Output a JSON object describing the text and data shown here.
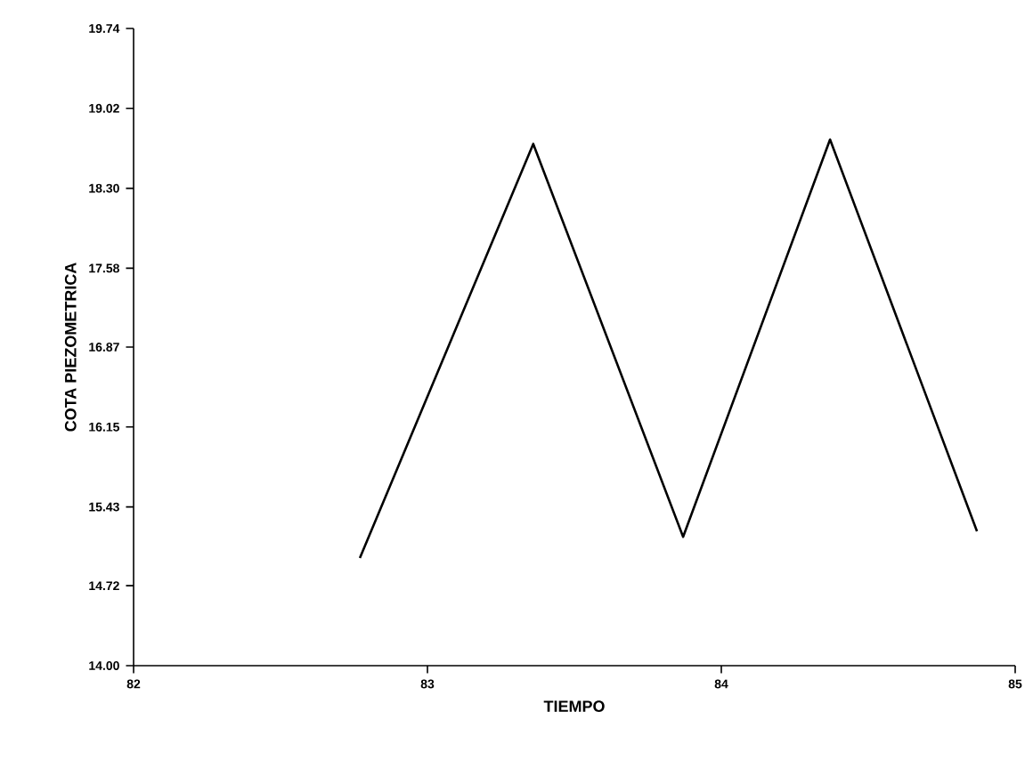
{
  "chart_data": {
    "type": "line",
    "xlabel": "TIEMPO",
    "ylabel": "COTA PIEZOMETRICA",
    "x": [
      82.77,
      83.36,
      83.87,
      84.37,
      84.87
    ],
    "series": [
      {
        "color": "#000000",
        "values": [
          14.97,
          18.7,
          15.16,
          18.74,
          15.21
        ]
      }
    ],
    "xlim": [
      82,
      85
    ],
    "xticks": [
      82,
      83,
      84,
      85
    ],
    "ylim": [
      14.0,
      19.74
    ],
    "yticks": [
      {
        "value": 14.0,
        "label": "14.00"
      },
      {
        "value": 14.72,
        "label": "14.72"
      },
      {
        "value": 15.43,
        "label": "15.43"
      },
      {
        "value": 16.15,
        "label": "16.15"
      },
      {
        "value": 16.87,
        "label": "16.87"
      },
      {
        "value": 17.58,
        "label": "17.58"
      },
      {
        "value": 18.3,
        "label": "18.30"
      },
      {
        "value": 19.02,
        "label": "19.02"
      },
      {
        "value": 19.74,
        "label": "19.74"
      }
    ],
    "grid": false,
    "marker": "none",
    "line_style": "solid"
  }
}
